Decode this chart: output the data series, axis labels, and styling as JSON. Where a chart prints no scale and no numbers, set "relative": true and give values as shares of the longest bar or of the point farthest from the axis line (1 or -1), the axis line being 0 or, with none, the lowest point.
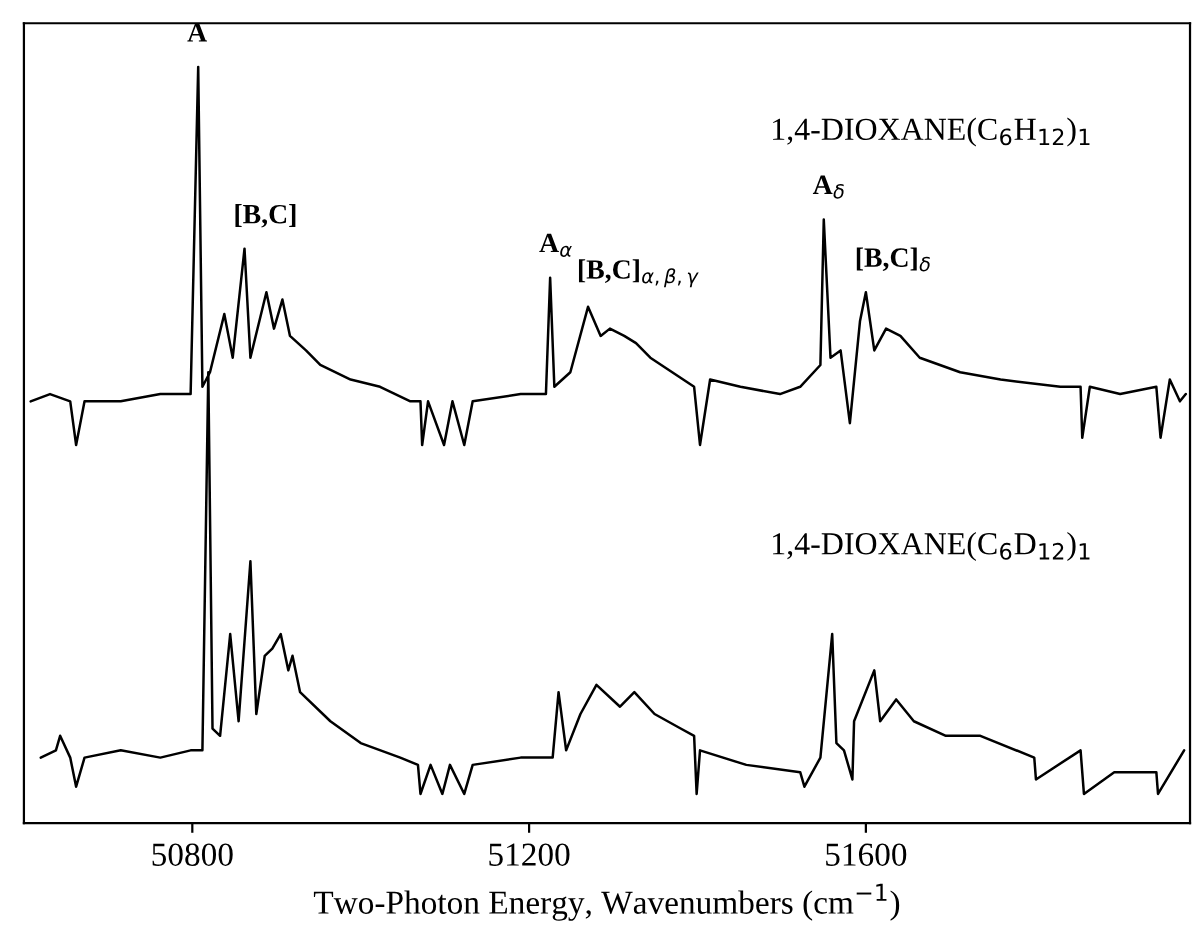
{
  "chart_data": {
    "type": "line",
    "relative": true,
    "xlabel": "Two-Photon Energy, Wavenumbers (cm$^{−1}$)",
    "xlim": [
      50600,
      51985
    ],
    "xticks": [
      50800,
      51200,
      51600
    ],
    "grid": false,
    "legend": false,
    "marker": "none",
    "line_style": "solid",
    "tick_labels": "x",
    "series": [
      {
        "name": "1,4-DIOXANE(C$_{6}$H$_{12}$)$_{1}$",
        "color": "#000000",
        "x": [
          50608,
          50631,
          50655,
          50662,
          50672,
          50715,
          50762,
          50798,
          50807,
          50812,
          50821,
          50838,
          50848,
          50862,
          50869,
          50888,
          50897,
          50907,
          50916,
          50935,
          50952,
          50988,
          51023,
          51059,
          51071,
          51073,
          51080,
          51099,
          51109,
          51123,
          51133,
          51190,
          51220,
          51225,
          51230,
          51249,
          51270,
          51285,
          51296,
          51313,
          51327,
          51344,
          51396,
          51403,
          51415,
          51451,
          51498,
          51522,
          51546,
          51550,
          51558,
          51570,
          51581,
          51593,
          51600,
          51610,
          51624,
          51641,
          51664,
          51712,
          51760,
          51831,
          51855,
          51857,
          51866,
          51902,
          51945,
          51950,
          51961,
          51973,
          51980
        ],
        "values": [
          0.54,
          0.55,
          0.54,
          0.48,
          0.54,
          0.54,
          0.55,
          0.55,
          1.0,
          0.56,
          0.58,
          0.66,
          0.6,
          0.75,
          0.6,
          0.69,
          0.64,
          0.68,
          0.63,
          0.61,
          0.59,
          0.57,
          0.56,
          0.54,
          0.54,
          0.48,
          0.54,
          0.48,
          0.54,
          0.48,
          0.54,
          0.55,
          0.55,
          0.71,
          0.56,
          0.58,
          0.67,
          0.63,
          0.64,
          0.63,
          0.62,
          0.6,
          0.56,
          0.48,
          0.57,
          0.56,
          0.55,
          0.56,
          0.59,
          0.79,
          0.6,
          0.61,
          0.51,
          0.65,
          0.69,
          0.61,
          0.64,
          0.63,
          0.6,
          0.58,
          0.57,
          0.56,
          0.56,
          0.49,
          0.56,
          0.55,
          0.56,
          0.49,
          0.57,
          0.54,
          0.55
        ]
      },
      {
        "name": "1,4-DIOXANE(C$_{6}$D$_{12}$)$_{1}$",
        "color": "#000000",
        "x": [
          50620,
          50638,
          50643,
          50655,
          50662,
          50672,
          50715,
          50762,
          50798,
          50812,
          50819,
          50824,
          50833,
          50845,
          50855,
          50869,
          50876,
          50886,
          50895,
          50905,
          50914,
          50919,
          50928,
          50964,
          51000,
          51047,
          51068,
          51071,
          51083,
          51097,
          51106,
          51123,
          51133,
          51190,
          51228,
          51235,
          51244,
          51261,
          51280,
          51308,
          51325,
          51349,
          51380,
          51396,
          51399,
          51403,
          51458,
          51522,
          51527,
          51546,
          51560,
          51565,
          51574,
          51584,
          51586,
          51610,
          51617,
          51636,
          51657,
          51695,
          51736,
          51800,
          51802,
          51855,
          51859,
          51895,
          51945,
          51947,
          51978
        ],
        "values": [
          0.05,
          0.06,
          0.08,
          0.05,
          0.01,
          0.05,
          0.06,
          0.05,
          0.06,
          0.06,
          0.58,
          0.09,
          0.08,
          0.22,
          0.1,
          0.32,
          0.11,
          0.19,
          0.2,
          0.22,
          0.17,
          0.19,
          0.14,
          0.1,
          0.07,
          0.05,
          0.04,
          0.0,
          0.04,
          0.0,
          0.04,
          0.0,
          0.04,
          0.05,
          0.05,
          0.14,
          0.06,
          0.11,
          0.15,
          0.12,
          0.14,
          0.11,
          0.09,
          0.08,
          0.0,
          0.06,
          0.04,
          0.03,
          0.01,
          0.05,
          0.22,
          0.07,
          0.06,
          0.02,
          0.1,
          0.17,
          0.1,
          0.13,
          0.1,
          0.08,
          0.08,
          0.05,
          0.02,
          0.06,
          0.0,
          0.03,
          0.03,
          0.0,
          0.06
        ]
      }
    ],
    "annotations": [
      {
        "text": "A",
        "x": 50807,
        "y": 1.0
      },
      {
        "text": "[B,C]",
        "x": 50862,
        "y": 0.75
      },
      {
        "text": "A$_{α}$",
        "x": 51225,
        "y": 0.71
      },
      {
        "text": "[B,C]$_{α,β,γ}$",
        "x": 51270,
        "y": 0.67
      },
      {
        "text": "A$_{δ}$",
        "x": 51550,
        "y": 0.79
      },
      {
        "text": "[B,C]$_{δ}$",
        "x": 51600,
        "y": 0.69
      }
    ]
  }
}
